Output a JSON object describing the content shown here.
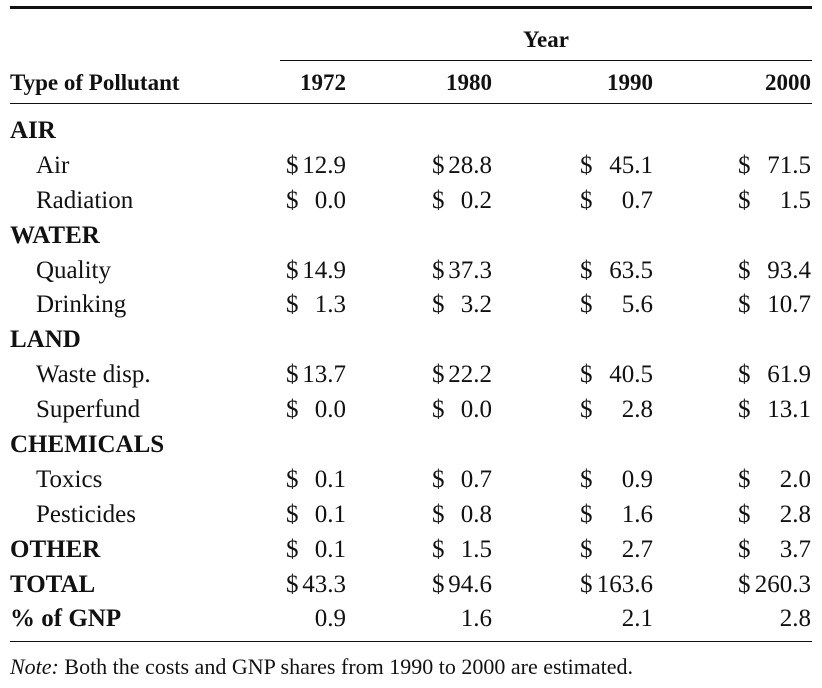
{
  "table": {
    "group_header": "Year",
    "label_header": "Type of Pollutant",
    "years": [
      "1972",
      "1980",
      "1990",
      "2000"
    ],
    "rows": [
      {
        "type": "category",
        "label": "AIR",
        "values": [
          "",
          "",
          "",
          ""
        ]
      },
      {
        "type": "item",
        "label": "Air",
        "values": [
          "12.9",
          "28.8",
          "45.1",
          "71.5"
        ]
      },
      {
        "type": "item",
        "label": "Radiation",
        "values": [
          "0.0",
          "0.2",
          "0.7",
          "1.5"
        ]
      },
      {
        "type": "category",
        "label": "WATER",
        "values": [
          "",
          "",
          "",
          ""
        ]
      },
      {
        "type": "item",
        "label": "Quality",
        "values": [
          "14.9",
          "37.3",
          "63.5",
          "93.4"
        ]
      },
      {
        "type": "item",
        "label": "Drinking",
        "values": [
          "1.3",
          "3.2",
          "5.6",
          "10.7"
        ]
      },
      {
        "type": "category",
        "label": "LAND",
        "values": [
          "",
          "",
          "",
          ""
        ]
      },
      {
        "type": "item",
        "label": "Waste disp.",
        "values": [
          "13.7",
          "22.2",
          "40.5",
          "61.9"
        ]
      },
      {
        "type": "item",
        "label": "Superfund",
        "values": [
          "0.0",
          "0.0",
          "2.8",
          "13.1"
        ]
      },
      {
        "type": "category",
        "label": "CHEMICALS",
        "values": [
          "",
          "",
          "",
          ""
        ]
      },
      {
        "type": "item",
        "label": "Toxics",
        "values": [
          "0.1",
          "0.7",
          "0.9",
          "2.0"
        ]
      },
      {
        "type": "item",
        "label": "Pesticides",
        "values": [
          "0.1",
          "0.8",
          "1.6",
          "2.8"
        ]
      },
      {
        "type": "category-valued",
        "label": "OTHER",
        "values": [
          "0.1",
          "1.5",
          "2.7",
          "3.7"
        ]
      },
      {
        "type": "category-valued",
        "label": "TOTAL",
        "values": [
          "43.3",
          "94.6",
          "163.6",
          "260.3"
        ]
      },
      {
        "type": "percent",
        "label": "% of GNP",
        "values": [
          "0.9",
          "1.6",
          "2.1",
          "2.8"
        ]
      }
    ],
    "currency_symbol": "$"
  },
  "note": {
    "prefix": "Note:",
    "text": " Both the costs and GNP shares from 1990 to 2000 are estimated."
  }
}
